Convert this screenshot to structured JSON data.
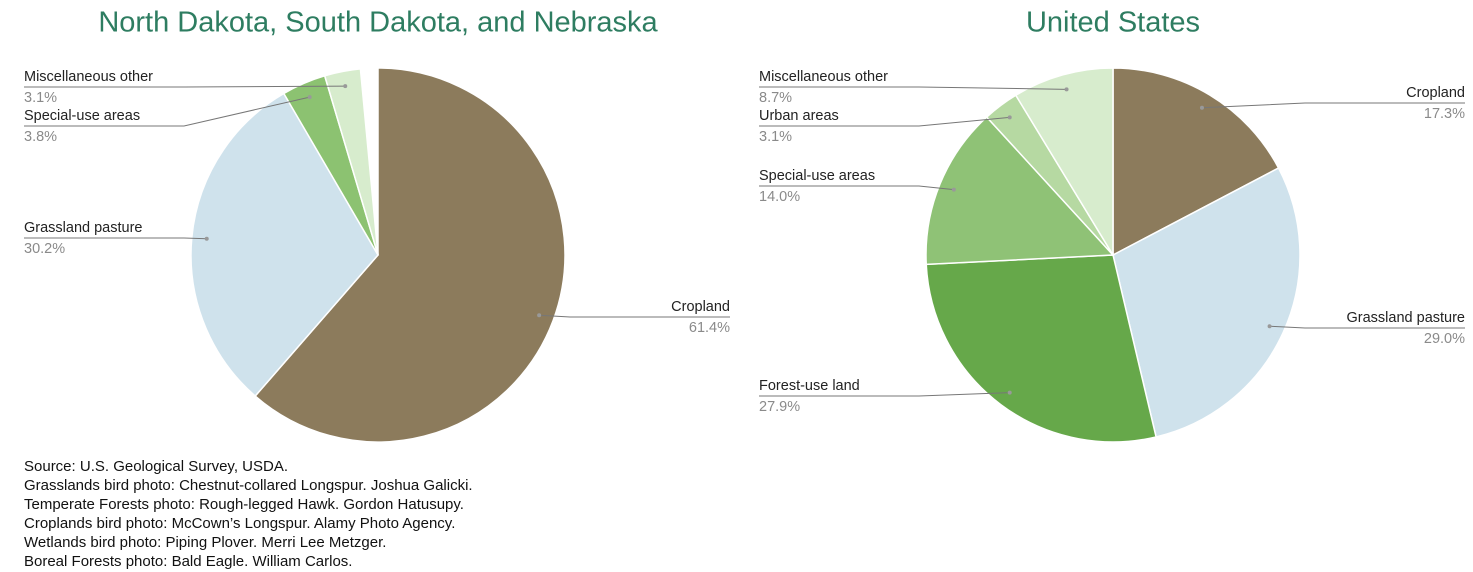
{
  "chart_data": [
    {
      "type": "pie",
      "title": "North Dakota, South Dakota, and Nebraska",
      "categories": [
        "Cropland",
        "Grassland pasture",
        "Special-use areas",
        "Miscellaneous other"
      ],
      "values": [
        61.4,
        30.2,
        3.8,
        3.1
      ],
      "value_labels": [
        "61.4%",
        "30.2%",
        "3.8%",
        "3.1%"
      ],
      "colors": [
        "#8c7b5c",
        "#cfe2ec",
        "#8cc271",
        "#d7eccd"
      ]
    },
    {
      "type": "pie",
      "title": "United States",
      "categories": [
        "Cropland",
        "Grassland pasture",
        "Forest-use land",
        "Special-use areas",
        "Urban areas",
        "Miscellaneous other"
      ],
      "values": [
        17.3,
        29.0,
        27.9,
        14.0,
        3.1,
        8.7
      ],
      "value_labels": [
        "17.3%",
        "29.0%",
        "27.9%",
        "14.0%",
        "3.1%",
        "8.7%"
      ],
      "colors": [
        "#8c7b5c",
        "#cfe2ec",
        "#66a84a",
        "#8fc276",
        "#b6d9a2",
        "#d7eccd"
      ]
    }
  ],
  "source": [
    "Source: U.S. Geological Survey, USDA.",
    "Grasslands bird photo: Chestnut-collared Longspur. Joshua Galicki.",
    "Temperate Forests photo: Rough-legged Hawk. Gordon Hatusupy.",
    "Croplands bird photo: McCown’s Longspur. Alamy Photo Agency.",
    "Wetlands bird photo: Piping Plover. Merri Lee Metzger.",
    "Boreal Forests photo: Bald Eagle. William Carlos."
  ]
}
